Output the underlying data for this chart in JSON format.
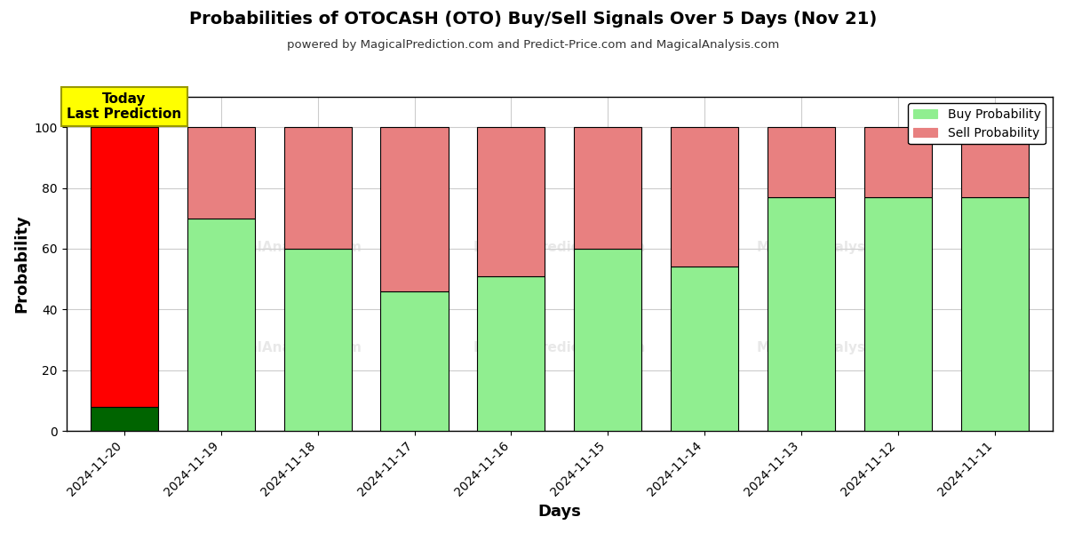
{
  "title": "Probabilities of OTOCASH (OTO) Buy/Sell Signals Over 5 Days (Nov 21)",
  "subtitle": "powered by MagicalPrediction.com and Predict-Price.com and MagicalAnalysis.com",
  "xlabel": "Days",
  "ylabel": "Probability",
  "dates": [
    "2024-11-20",
    "2024-11-19",
    "2024-11-18",
    "2024-11-17",
    "2024-11-16",
    "2024-11-15",
    "2024-11-14",
    "2024-11-13",
    "2024-11-12",
    "2024-11-11"
  ],
  "buy_values": [
    8,
    70,
    60,
    46,
    51,
    60,
    54,
    77,
    77,
    77
  ],
  "sell_values": [
    92,
    30,
    40,
    54,
    49,
    40,
    46,
    23,
    23,
    23
  ],
  "buy_color_today": "#006400",
  "sell_color_today": "#ff0000",
  "buy_color_normal": "#90EE90",
  "sell_color_normal": "#E88080",
  "today_label_bg": "#ffff00",
  "today_label_text": "Today\nLast Prediction",
  "legend_buy": "Buy Probability",
  "legend_sell": "Sell Probability",
  "ylim": [
    0,
    110
  ],
  "yticks": [
    0,
    20,
    40,
    60,
    80,
    100
  ],
  "dashed_line_y": 110,
  "figsize": [
    12.0,
    6.0
  ],
  "dpi": 100,
  "bar_edge_color": "#000000",
  "background_color": "#ffffff",
  "grid_color": "#cccccc"
}
